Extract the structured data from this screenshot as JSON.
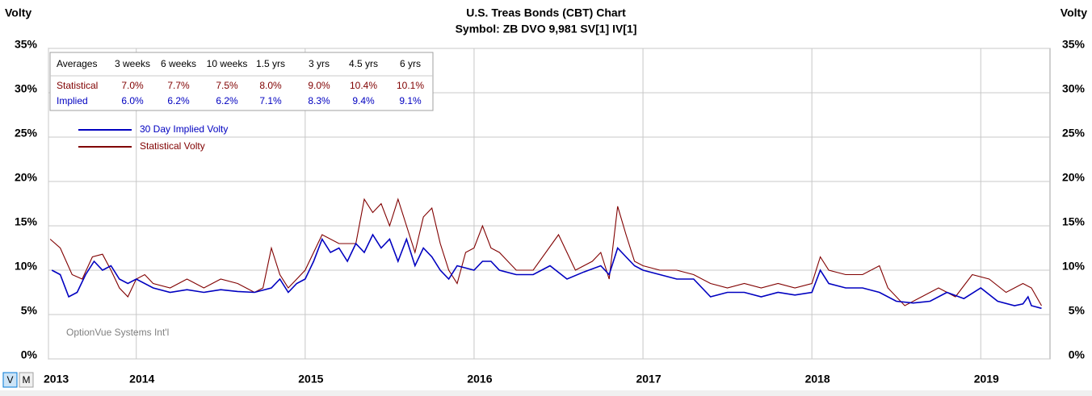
{
  "chart_data": {
    "type": "line",
    "title": "U.S. Treas Bonds (CBT) Chart",
    "subtitle": "Symbol: ZB  DVO 9,981  SV[1]  IV[1]",
    "y_label": "Volty",
    "y2_label": "Volty",
    "watermark": "OptionVue Systems Int'l",
    "view_buttons": [
      "V",
      "M"
    ],
    "xlim": [
      2013.48,
      2019.41
    ],
    "xticks": [
      {
        "value": 2013.48,
        "label": "2013"
      },
      2014,
      2015,
      2016,
      2017,
      2018,
      2019
    ],
    "ylim": [
      0,
      35
    ],
    "yticks": [
      {
        "value": 0,
        "label": "0%"
      },
      {
        "value": 5,
        "label": "5%"
      },
      {
        "value": 10,
        "label": "10%"
      },
      {
        "value": 15,
        "label": "15%"
      },
      {
        "value": 20,
        "label": "20%"
      },
      {
        "value": 25,
        "label": "25%"
      },
      {
        "value": 30,
        "label": "30%"
      },
      {
        "value": 35,
        "label": "35%"
      }
    ],
    "grid": true,
    "legend": "upper left",
    "series": [
      {
        "name": "30 Day Implied Volty",
        "color": "#0000c0",
        "x": [
          2013.5,
          2013.55,
          2013.6,
          2013.65,
          2013.7,
          2013.75,
          2013.8,
          2013.85,
          2013.9,
          2013.95,
          2014.0,
          2014.1,
          2014.2,
          2014.3,
          2014.4,
          2014.5,
          2014.6,
          2014.7,
          2014.8,
          2014.85,
          2014.9,
          2014.95,
          2015.0,
          2015.05,
          2015.1,
          2015.15,
          2015.2,
          2015.25,
          2015.3,
          2015.35,
          2015.4,
          2015.45,
          2015.5,
          2015.55,
          2015.6,
          2015.65,
          2015.7,
          2015.75,
          2015.8,
          2015.85,
          2015.9,
          2016.0,
          2016.05,
          2016.1,
          2016.15,
          2016.25,
          2016.35,
          2016.45,
          2016.55,
          2016.65,
          2016.75,
          2016.8,
          2016.85,
          2016.9,
          2016.95,
          2017.0,
          2017.1,
          2017.2,
          2017.3,
          2017.4,
          2017.5,
          2017.6,
          2017.7,
          2017.8,
          2017.9,
          2018.0,
          2018.05,
          2018.1,
          2018.2,
          2018.3,
          2018.4,
          2018.5,
          2018.6,
          2018.7,
          2018.8,
          2018.9,
          2019.0,
          2019.1,
          2019.2,
          2019.25,
          2019.28,
          2019.3,
          2019.36
        ],
        "values": [
          10.0,
          9.5,
          7.0,
          7.5,
          9.5,
          11.0,
          10.0,
          10.5,
          9.0,
          8.5,
          9.0,
          8.0,
          7.5,
          7.8,
          7.5,
          7.8,
          7.6,
          7.5,
          8.0,
          9.0,
          7.5,
          8.5,
          9.0,
          11.0,
          13.5,
          12.0,
          12.5,
          11.0,
          13.0,
          12.0,
          14.0,
          12.5,
          13.5,
          11.0,
          13.5,
          10.5,
          12.5,
          11.5,
          10.0,
          9.0,
          10.5,
          10.0,
          11.0,
          11.0,
          10.0,
          9.5,
          9.5,
          10.5,
          9.0,
          9.8,
          10.5,
          9.5,
          12.5,
          11.5,
          10.5,
          10.0,
          9.5,
          9.0,
          9.0,
          7.0,
          7.5,
          7.5,
          7.0,
          7.5,
          7.2,
          7.5,
          10.0,
          8.5,
          8.0,
          8.0,
          7.5,
          6.5,
          6.3,
          6.5,
          7.5,
          6.8,
          8.0,
          6.5,
          6.0,
          6.2,
          7.0,
          6.0,
          5.7
        ]
      },
      {
        "name": "Statistical Volty",
        "color": "#800000",
        "x": [
          2013.49,
          2013.55,
          2013.62,
          2013.68,
          2013.74,
          2013.8,
          2013.85,
          2013.9,
          2013.95,
          2014.0,
          2014.05,
          2014.1,
          2014.2,
          2014.3,
          2014.4,
          2014.5,
          2014.6,
          2014.7,
          2014.75,
          2014.8,
          2014.85,
          2014.9,
          2014.95,
          2015.0,
          2015.1,
          2015.2,
          2015.3,
          2015.35,
          2015.4,
          2015.45,
          2015.5,
          2015.55,
          2015.6,
          2015.65,
          2015.7,
          2015.75,
          2015.8,
          2015.85,
          2015.9,
          2015.95,
          2016.0,
          2016.05,
          2016.1,
          2016.15,
          2016.25,
          2016.35,
          2016.5,
          2016.6,
          2016.7,
          2016.75,
          2016.8,
          2016.85,
          2016.9,
          2016.95,
          2017.0,
          2017.1,
          2017.2,
          2017.3,
          2017.4,
          2017.5,
          2017.6,
          2017.7,
          2017.8,
          2017.9,
          2018.0,
          2018.05,
          2018.1,
          2018.2,
          2018.3,
          2018.4,
          2018.45,
          2018.55,
          2018.65,
          2018.75,
          2018.85,
          2018.95,
          2019.05,
          2019.15,
          2019.25,
          2019.3,
          2019.36
        ],
        "values": [
          13.5,
          12.5,
          9.5,
          9.0,
          11.5,
          11.8,
          10.0,
          8.0,
          7.0,
          9.0,
          9.5,
          8.5,
          8.0,
          9.0,
          8.0,
          9.0,
          8.5,
          7.5,
          8.0,
          12.5,
          9.5,
          8.0,
          9.0,
          10.0,
          14.0,
          13.0,
          13.0,
          18.0,
          16.5,
          17.5,
          15.0,
          18.0,
          15.0,
          12.0,
          16.0,
          17.0,
          13.0,
          10.0,
          8.5,
          12.0,
          12.5,
          15.0,
          12.5,
          12.0,
          10.0,
          10.0,
          14.0,
          10.0,
          11.0,
          12.0,
          9.0,
          17.2,
          14.0,
          11.0,
          10.5,
          10.0,
          10.0,
          9.5,
          8.5,
          8.0,
          8.5,
          8.0,
          8.5,
          8.0,
          8.5,
          11.5,
          10.0,
          9.5,
          9.5,
          10.5,
          8.0,
          6.0,
          7.0,
          8.0,
          7.0,
          9.5,
          9.0,
          7.5,
          8.5,
          8.0,
          6.0
        ]
      }
    ],
    "averages_table": {
      "header": [
        "Averages",
        "3 weeks",
        "6 weeks",
        "10 weeks",
        "1.5 yrs",
        "3 yrs",
        "4.5 yrs",
        "6 yrs"
      ],
      "rows": [
        [
          "Statistical",
          "7.0%",
          "7.7%",
          "7.5%",
          "8.0%",
          "9.0%",
          "10.4%",
          "10.1%"
        ],
        [
          "Implied",
          "6.0%",
          "6.2%",
          "6.2%",
          "7.1%",
          "8.3%",
          "9.4%",
          "9.1%"
        ]
      ]
    }
  }
}
